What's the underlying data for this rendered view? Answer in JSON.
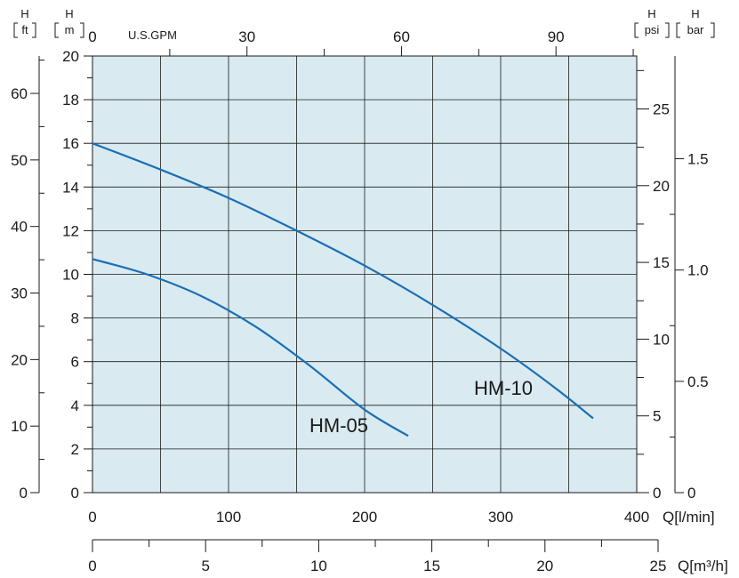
{
  "chart_data": {
    "type": "line",
    "series": [
      {
        "name": "HM-05",
        "x": [
          0,
          40,
          80,
          120,
          160,
          200,
          232
        ],
        "y": [
          10.7,
          10.0,
          9.0,
          7.6,
          5.8,
          3.8,
          2.6
        ]
      },
      {
        "name": "HM-10",
        "x": [
          0,
          50,
          100,
          150,
          200,
          250,
          300,
          340,
          368
        ],
        "y": [
          16.0,
          14.8,
          13.5,
          12.0,
          10.4,
          8.6,
          6.6,
          4.8,
          3.4
        ]
      }
    ],
    "x_axis": {
      "ticks": [
        "0",
        "100",
        "200",
        "300",
        "400"
      ],
      "label": "Q[l/min]",
      "range": [
        0,
        400
      ]
    },
    "y_axis": {
      "ticks": [
        "0",
        "2",
        "4",
        "6",
        "8",
        "10",
        "12",
        "14",
        "16",
        "18",
        "20"
      ],
      "range": [
        0,
        20
      ]
    },
    "ft_axis": {
      "ticks": [
        "0",
        "10",
        "20",
        "30",
        "40",
        "50",
        "60"
      ],
      "unit_top": "H",
      "unit_bottom": "ft"
    },
    "m_axis_header": {
      "unit_top": "H",
      "unit_bottom": "m"
    },
    "gpm_axis": {
      "ticks": [
        "0",
        "30",
        "60",
        "90"
      ],
      "label": "U.S.GPM"
    },
    "psi_axis": {
      "ticks": [
        "0",
        "5",
        "10",
        "15",
        "20",
        "25"
      ],
      "unit_top": "H",
      "unit_bottom": "psi"
    },
    "bar_axis": {
      "ticks": [
        "0",
        "0.5",
        "1.0",
        "1.5"
      ],
      "unit_top": "H",
      "unit_bottom": "bar"
    },
    "m3h_axis": {
      "ticks": [
        "0",
        "5",
        "10",
        "15",
        "20",
        "25"
      ],
      "label": "Q[m³/h]",
      "range": [
        0,
        25
      ]
    },
    "grid": true,
    "colors": {
      "plot_bg": "#d9ebf1",
      "curve": "#1a6fb5",
      "grid": "#1a1a1a"
    }
  }
}
